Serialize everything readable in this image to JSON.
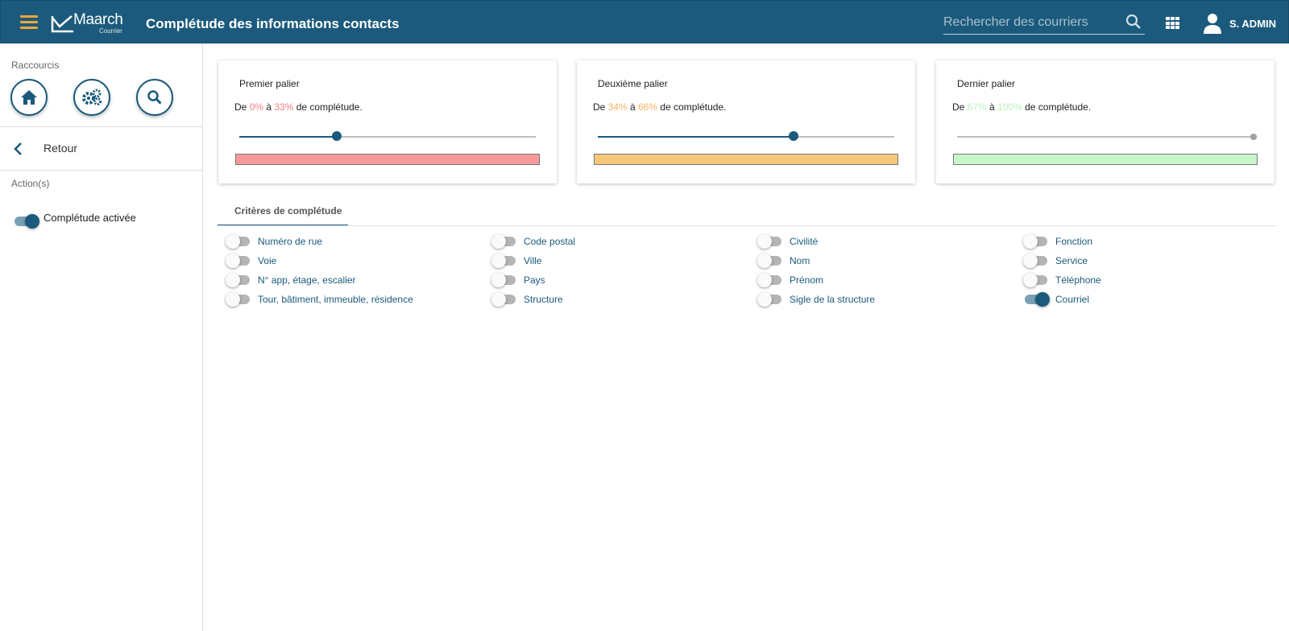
{
  "header": {
    "logo_name": "Maarch",
    "logo_sub": "Courrier",
    "title": "Complétude des informations contacts",
    "search_placeholder": "Rechercher des courriers",
    "user_name": "S. ADMIN"
  },
  "sidebar": {
    "shortcuts_label": "Raccourcis",
    "shortcuts": [
      "home-icon",
      "gears-icon",
      "search-icon"
    ],
    "back_label": "Retour",
    "actions_label": "Action(s)",
    "action_toggle_label": "Complétude activée",
    "action_toggle_on": true
  },
  "cards": [
    {
      "title": "Premier palier",
      "prefix": "De ",
      "from": "0%",
      "middle": " à ",
      "to": "33%",
      "suffix": " de complétude.",
      "color_text": "#f07f7f",
      "bar_color": "#f5999b",
      "slider_value": 33
    },
    {
      "title": "Deuxième palier",
      "prefix": "De ",
      "from": "34%",
      "middle": " à ",
      "to": "66%",
      "suffix": " de complétude.",
      "color_text": "#f3b560",
      "bar_color": "#f5c87c",
      "slider_value": 66
    },
    {
      "title": "Dernier palier",
      "prefix": "De ",
      "from": "67%",
      "middle": " à ",
      "to": "100%",
      "suffix": " de complétude.",
      "color_text": "#b9f2b9",
      "bar_color": "#c8f7c9",
      "slider_value": 100
    }
  ],
  "tab_label": "Critères de complétude",
  "criteria_columns": [
    [
      {
        "label": "Numéro de rue",
        "on": false
      },
      {
        "label": "Voie",
        "on": false
      },
      {
        "label": "N° app, étage, escalier",
        "on": false
      },
      {
        "label": "Tour, bâtiment, immeuble, résidence",
        "on": false
      }
    ],
    [
      {
        "label": "Code postal",
        "on": false
      },
      {
        "label": "Ville",
        "on": false
      },
      {
        "label": "Pays",
        "on": false
      },
      {
        "label": "Structure",
        "on": false
      }
    ],
    [
      {
        "label": "Civilité",
        "on": false
      },
      {
        "label": "Nom",
        "on": false
      },
      {
        "label": "Prénom",
        "on": false
      },
      {
        "label": "Sigle de la structure",
        "on": false
      }
    ],
    [
      {
        "label": "Fonction",
        "on": false
      },
      {
        "label": "Service",
        "on": false
      },
      {
        "label": "Téléphone",
        "on": false
      },
      {
        "label": "Courriel",
        "on": true
      }
    ]
  ],
  "colors": {
    "primary": "#1b5a7c",
    "accent": "#f1a53a"
  }
}
